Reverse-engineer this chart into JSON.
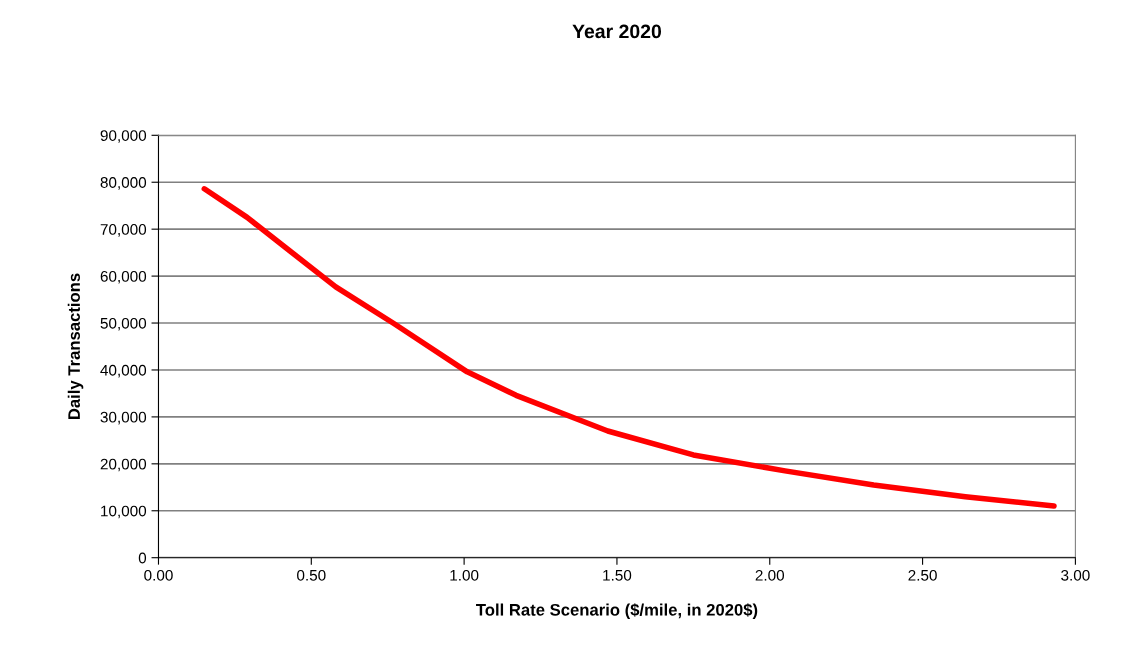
{
  "chart_data": {
    "type": "line",
    "title": "Year 2020",
    "xlabel": "Toll Rate Scenario ($/mile, in 2020$)",
    "ylabel": "Daily Transactions",
    "x": [
      0.15,
      0.29,
      0.58,
      0.77,
      1.01,
      1.17,
      1.47,
      1.75,
      2.05,
      2.34,
      2.64,
      2.93
    ],
    "series": [
      {
        "color": "#ff0000",
        "values": [
          78600,
          72500,
          57700,
          49900,
          39600,
          34600,
          27000,
          21900,
          18500,
          15500,
          13000,
          11000
        ]
      }
    ],
    "xlim": [
      0,
      3
    ],
    "xticks": [
      {
        "value": 0,
        "label": "0.00"
      },
      {
        "value": 0.5,
        "label": "0.50"
      },
      {
        "value": 1,
        "label": "1.00"
      },
      {
        "value": 1.5,
        "label": "1.50"
      },
      {
        "value": 2,
        "label": "2.00"
      },
      {
        "value": 2.5,
        "label": "2.50"
      },
      {
        "value": 3,
        "label": "3.00"
      }
    ],
    "ylim": [
      0,
      90000
    ],
    "yticks": [
      0,
      {
        "value": 10000,
        "label": "10,000"
      },
      {
        "value": 20000,
        "label": "20,000"
      },
      {
        "value": 30000,
        "label": "30,000"
      },
      {
        "value": 40000,
        "label": "40,000"
      },
      {
        "value": 50000,
        "label": "50,000"
      },
      {
        "value": 60000,
        "label": "60,000"
      },
      {
        "value": 70000,
        "label": "70,000"
      },
      {
        "value": 80000,
        "label": "80,000"
      },
      {
        "value": 90000,
        "label": "90,000"
      }
    ],
    "grid": "y",
    "legend": false,
    "marker": "none",
    "line_style": "solid"
  }
}
